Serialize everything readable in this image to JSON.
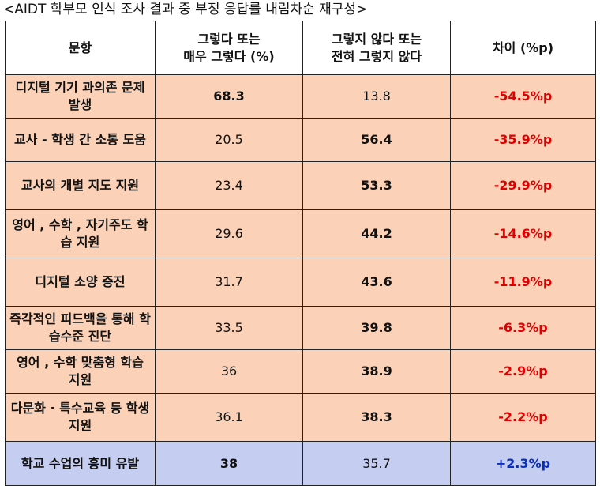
{
  "caption": "<AIDT 학부모 인식 조사 결과 중 부정 응답률 내림차순 재구성>",
  "headers": {
    "item": "문항",
    "agree_line1": "그렇다 또는",
    "agree_line2": "매우 그렇다 (%)",
    "disagree_line1": "그렇지 않다 또는",
    "disagree_line2": "전혀 그렇지 않다",
    "diff": "차이 (%p)"
  },
  "rows": [
    {
      "item": "디지털 기기 과의존 문제 발생",
      "agree": "68.3",
      "disagree": "13.8",
      "diff": "-54.5%p"
    },
    {
      "item": "교사 - 학생 간 소통 도움",
      "agree": "20.5",
      "disagree": "56.4",
      "diff": "-35.9%p"
    },
    {
      "item": "교사의 개별 지도 지원",
      "agree": "23.4",
      "disagree": "53.3",
      "diff": "-29.9%p"
    },
    {
      "item": "영어 , 수학 , 자기주도 학습 지원",
      "agree": "29.6",
      "disagree": "44.2",
      "diff": "-14.6%p"
    },
    {
      "item": "디지털 소양 증진",
      "agree": "31.7",
      "disagree": "43.6",
      "diff": "-11.9%p"
    },
    {
      "item": "즉각적인 피드백을 통해 학습수준 진단",
      "agree": "33.5",
      "disagree": "39.8",
      "diff": "-6.3%p"
    },
    {
      "item": "영어 , 수학 맞춤형 학습 지원",
      "agree": "36",
      "disagree": "38.9",
      "diff": "-2.9%p"
    },
    {
      "item": "다문화 · 특수교육 등 학생 지원",
      "agree": "36.1",
      "disagree": "38.3",
      "diff": "-2.2%p"
    },
    {
      "item": "학교 수업의 흥미 유발",
      "agree": "38",
      "disagree": "35.7",
      "diff": "+2.3%p"
    }
  ],
  "colors": {
    "row_bg": "#fbd2b8",
    "highlight_row_bg": "#c5cdf0",
    "negative_text": "#e00000",
    "positive_text": "#0a2fc0"
  }
}
